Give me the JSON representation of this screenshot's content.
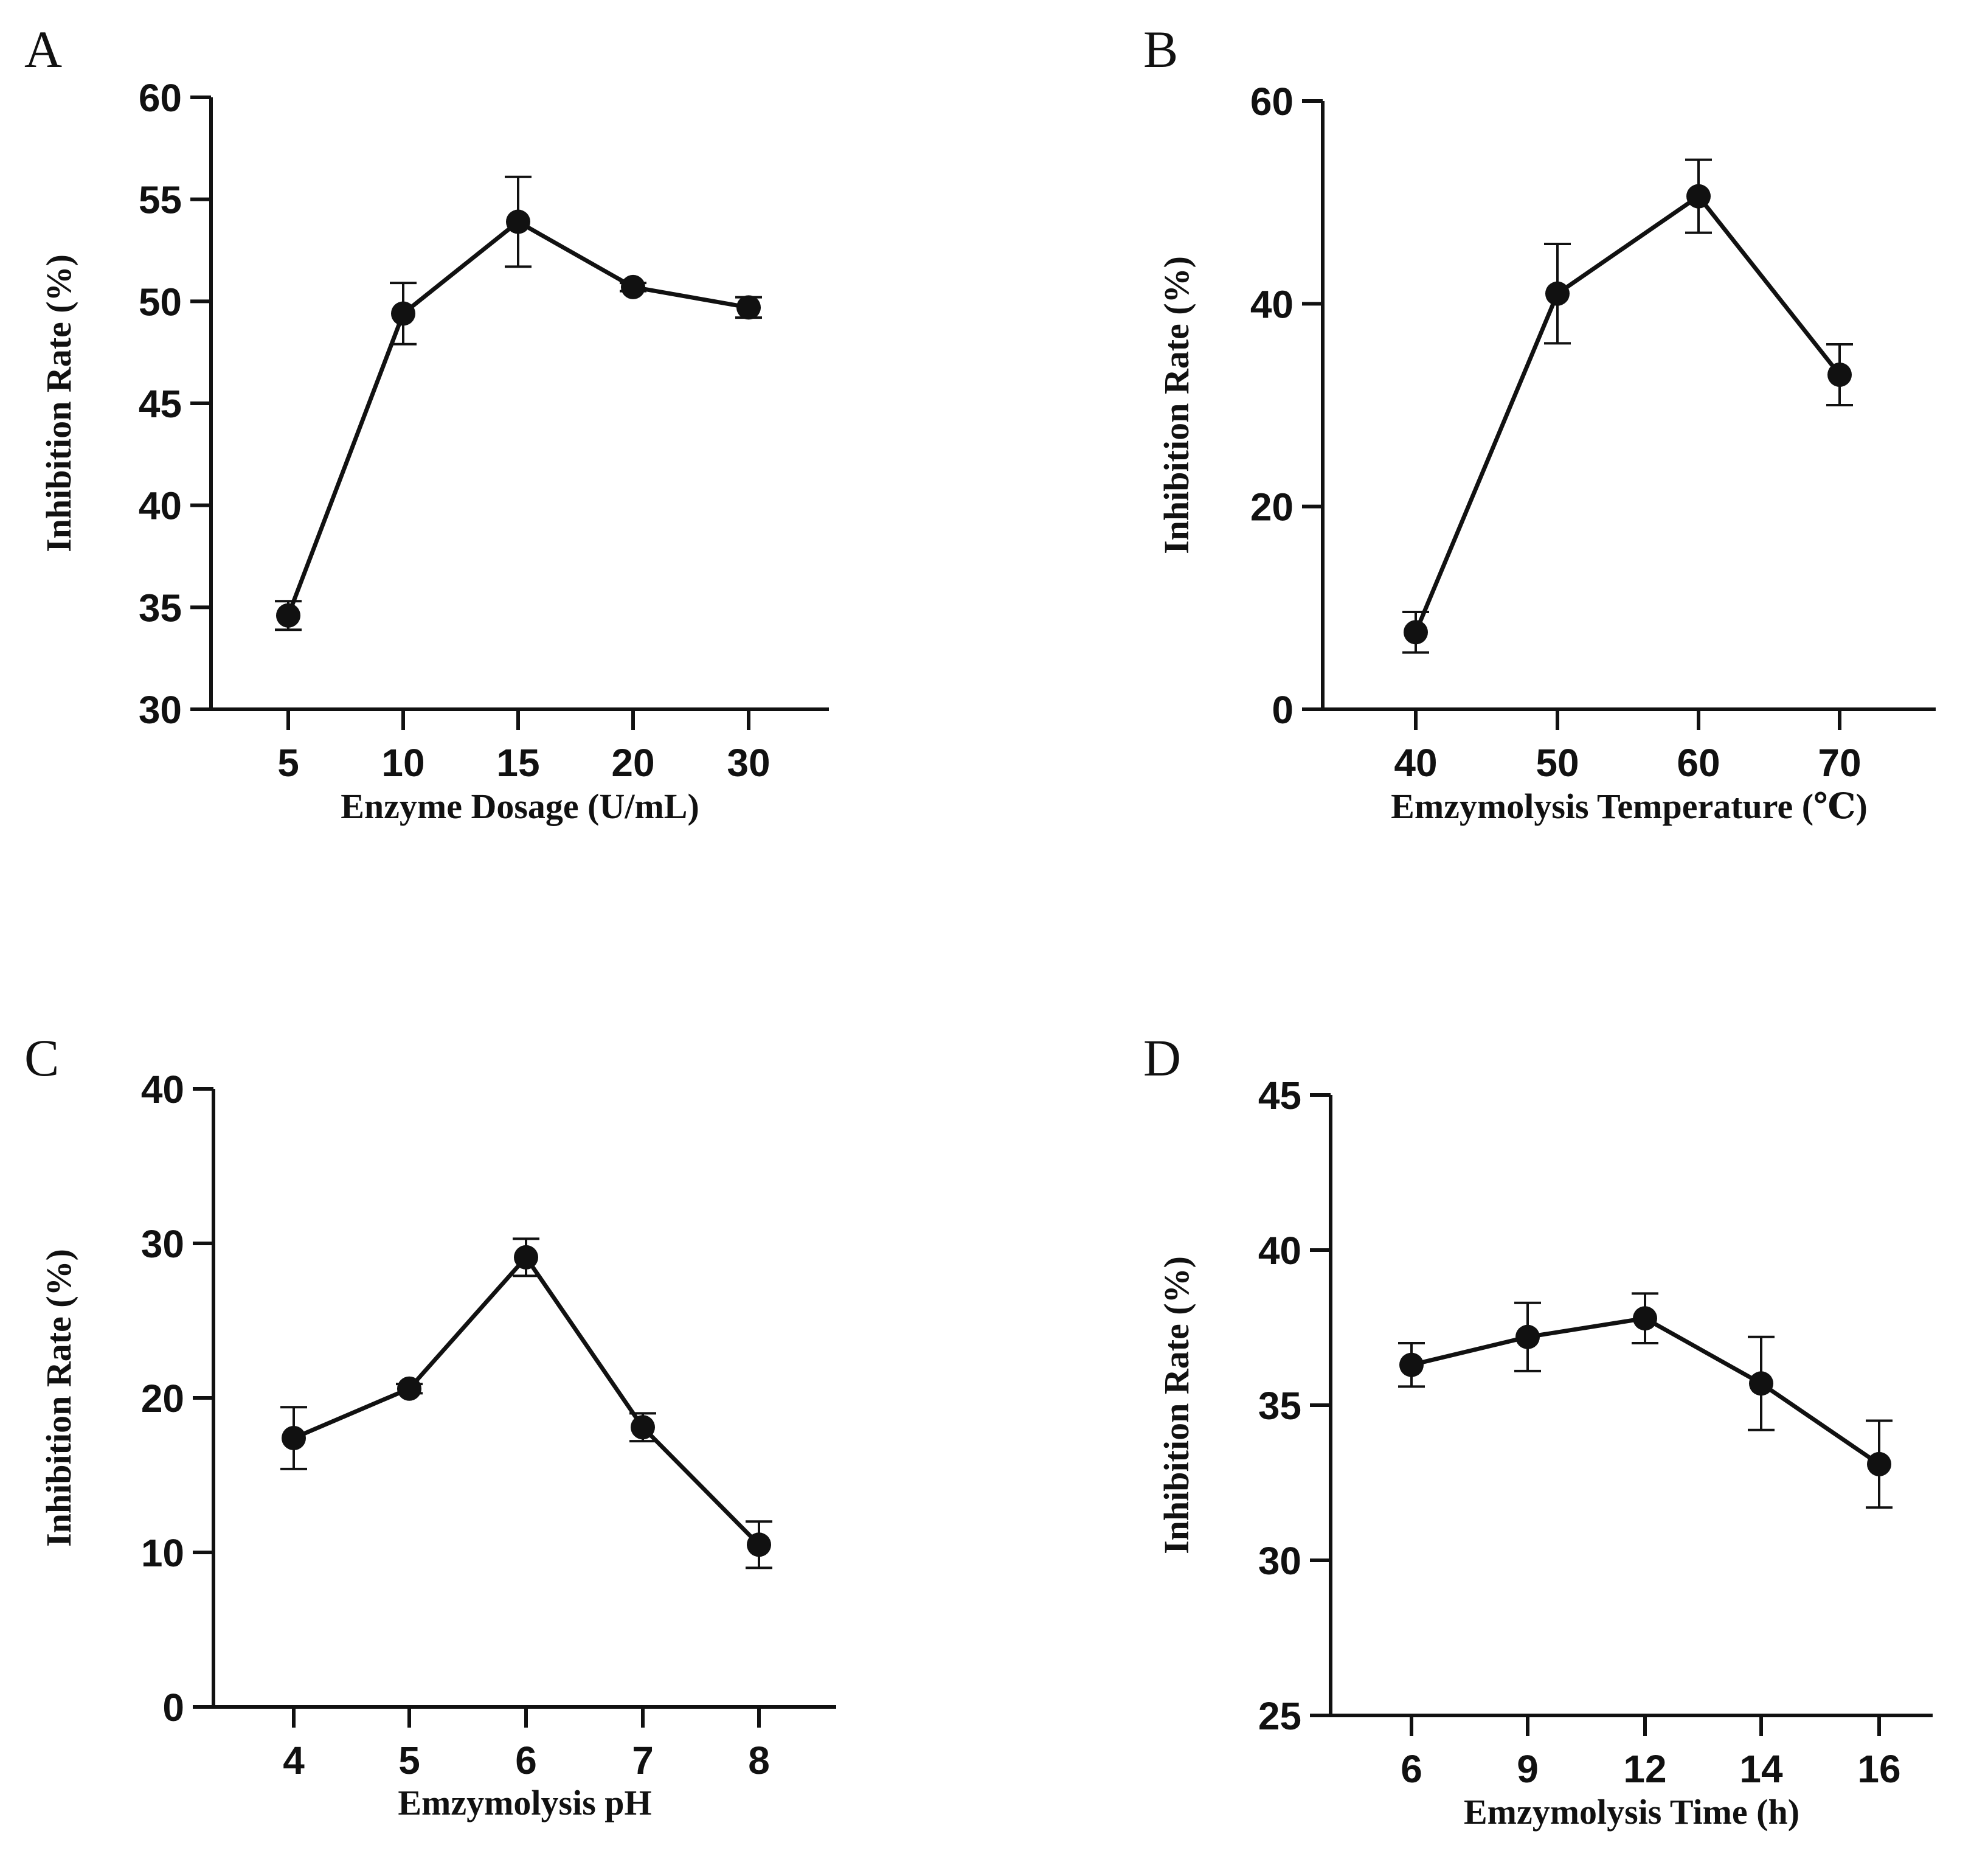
{
  "figure": {
    "colors": {
      "ink": "#111111",
      "background": "#ffffff"
    }
  },
  "chart_data": [
    {
      "panel": "A",
      "type": "line",
      "categories": [
        "5",
        "10",
        "15",
        "20",
        "30"
      ],
      "values": [
        34.6,
        49.4,
        53.9,
        50.7,
        49.7
      ],
      "errors": [
        0.7,
        1.5,
        2.2,
        0.2,
        0.5
      ],
      "xlabel": "Enzyme Dosage (U/mL)",
      "ylabel": "Inhibition Rate (%)",
      "ylim": [
        30,
        60
      ],
      "yticks": [
        30,
        35,
        40,
        45,
        50,
        55,
        60
      ],
      "grid": false
    },
    {
      "panel": "B",
      "type": "line",
      "categories": [
        "40",
        "50",
        "60",
        "70"
      ],
      "values": [
        7.6,
        41.0,
        50.6,
        33.0
      ],
      "errors": [
        2.0,
        4.9,
        3.6,
        3.0
      ],
      "xlabel": "Emzymolysis Temperature (℃)",
      "ylabel": "Inhibition Rate (%)",
      "ylim": [
        0,
        60
      ],
      "yticks": [
        0,
        20,
        40,
        60
      ],
      "grid": false
    },
    {
      "panel": "C",
      "type": "line",
      "categories": [
        "4",
        "5",
        "6",
        "7",
        "8"
      ],
      "values": [
        17.4,
        20.6,
        29.1,
        18.1,
        10.5
      ],
      "errors": [
        2.0,
        0.3,
        1.2,
        0.9,
        1.5
      ],
      "xlabel": "Emzymolysis pH",
      "ylabel": "Inhibition Rate (%)",
      "ylim": [
        0,
        40
      ],
      "yticks": [
        0,
        10,
        20,
        30,
        40
      ],
      "grid": false
    },
    {
      "panel": "D",
      "type": "line",
      "categories": [
        "6",
        "9",
        "12",
        "14",
        "16"
      ],
      "values": [
        36.3,
        37.2,
        37.8,
        35.7,
        33.1
      ],
      "errors": [
        0.7,
        1.1,
        0.8,
        1.5,
        1.4
      ],
      "xlabel": "Emzymolysis Time (h)",
      "ylabel": "Inhibition Rate (%)",
      "ylim": [
        25,
        45
      ],
      "yticks": [
        25,
        30,
        35,
        40,
        45
      ],
      "grid": false
    }
  ]
}
